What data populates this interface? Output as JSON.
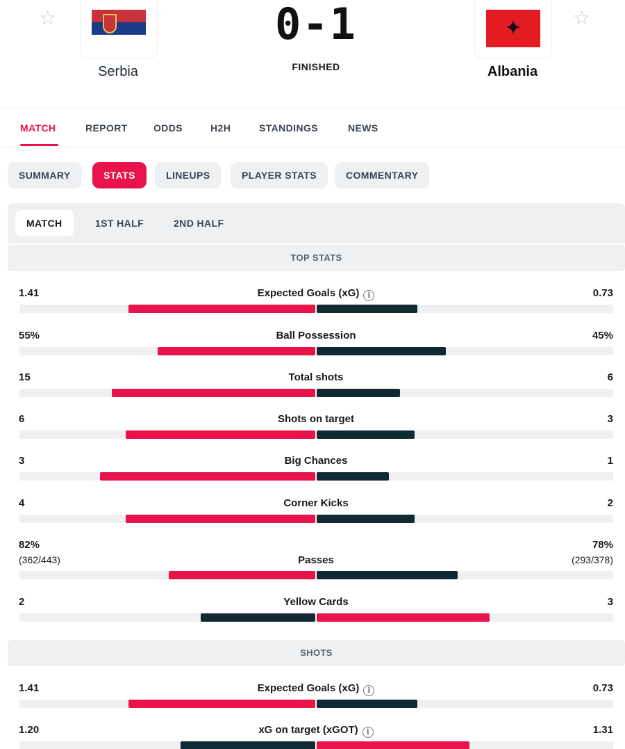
{
  "match": {
    "home_team": "Serbia",
    "away_team": "Albania",
    "score": "0-1",
    "status": "FINISHED",
    "home_flag_icon": "serbia-flag",
    "away_flag_icon": "albania-flag",
    "star_icon": "☆"
  },
  "main_tabs": [
    {
      "label": "MATCH",
      "active": true
    },
    {
      "label": "REPORT",
      "active": false
    },
    {
      "label": "ODDS",
      "active": false
    },
    {
      "label": "H2H",
      "active": false
    },
    {
      "label": "STANDINGS",
      "active": false
    },
    {
      "label": "NEWS",
      "active": false
    }
  ],
  "sub_tabs": [
    {
      "label": "SUMMARY",
      "active": false
    },
    {
      "label": "STATS",
      "active": true
    },
    {
      "label": "LINEUPS",
      "active": false
    },
    {
      "label": "PLAYER STATS",
      "active": false
    },
    {
      "label": "COMMENTARY",
      "active": false
    }
  ],
  "period_tabs": [
    {
      "label": "MATCH",
      "active": true
    },
    {
      "label": "1ST HALF",
      "active": false
    },
    {
      "label": "2ND HALF",
      "active": false
    }
  ],
  "colors": {
    "accent": "#e8134a",
    "dark": "#0f2a33",
    "track": "#eef0f2"
  },
  "sections": [
    {
      "title": "TOP STATS",
      "rows": [
        {
          "label": "Expected Goals (xG)",
          "info": true,
          "home": "1.41",
          "away": "0.73",
          "home_frac": 0.65,
          "away_frac": 0.35,
          "home_color": "accent",
          "away_color": "dark"
        },
        {
          "label": "Ball Possession",
          "info": false,
          "home": "55%",
          "away": "45%",
          "home_frac": 0.55,
          "away_frac": 0.45,
          "home_color": "accent",
          "away_color": "dark"
        },
        {
          "label": "Total shots",
          "info": false,
          "home": "15",
          "away": "6",
          "home_frac": 0.71,
          "away_frac": 0.29,
          "home_color": "accent",
          "away_color": "dark"
        },
        {
          "label": "Shots on target",
          "info": false,
          "home": "6",
          "away": "3",
          "home_frac": 0.66,
          "away_frac": 0.34,
          "home_color": "accent",
          "away_color": "dark"
        },
        {
          "label": "Big Chances",
          "info": false,
          "home": "3",
          "away": "1",
          "home_frac": 0.75,
          "away_frac": 0.25,
          "home_color": "accent",
          "away_color": "dark"
        },
        {
          "label": "Corner Kicks",
          "info": false,
          "home": "4",
          "away": "2",
          "home_frac": 0.66,
          "away_frac": 0.34,
          "home_color": "accent",
          "away_color": "dark"
        },
        {
          "label": "Passes",
          "info": false,
          "home": "82%",
          "away": "78%",
          "home_sub": "(362/443)",
          "away_sub": "(293/378)",
          "home_frac": 0.51,
          "away_frac": 0.49,
          "home_color": "accent",
          "away_color": "dark"
        },
        {
          "label": "Yellow Cards",
          "info": false,
          "home": "2",
          "away": "3",
          "home_frac": 0.4,
          "away_frac": 0.6,
          "home_color": "dark",
          "away_color": "accent"
        }
      ]
    },
    {
      "title": "SHOTS",
      "rows": [
        {
          "label": "Expected Goals (xG)",
          "info": true,
          "home": "1.41",
          "away": "0.73",
          "home_frac": 0.65,
          "away_frac": 0.35,
          "home_color": "accent",
          "away_color": "dark"
        },
        {
          "label": "xG on target (xGOT)",
          "info": true,
          "home": "1.20",
          "away": "1.31",
          "home_frac": 0.47,
          "away_frac": 0.53,
          "home_color": "dark",
          "away_color": "accent"
        }
      ]
    }
  ]
}
